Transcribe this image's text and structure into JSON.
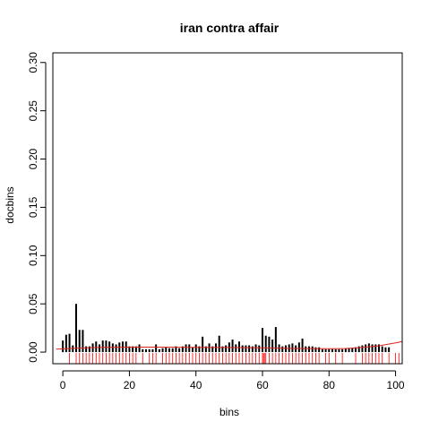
{
  "chart_data": {
    "type": "bar",
    "title": "iran contra affair",
    "xlabel": "bins",
    "ylabel": "docbins",
    "xlim": [
      -3,
      102
    ],
    "ylim": [
      -0.012,
      0.31
    ],
    "x_ticks": [
      0,
      20,
      40,
      60,
      80,
      100
    ],
    "y_ticks": [
      0.0,
      0.05,
      0.1,
      0.15,
      0.2,
      0.25,
      0.3
    ],
    "x_tick_labels": [
      "0",
      "20",
      "40",
      "60",
      "80",
      "100"
    ],
    "y_tick_labels": [
      "0.00",
      "0.05",
      "0.10",
      "0.15",
      "0.20",
      "0.25",
      "0.30"
    ],
    "bar_color": "#000000",
    "rug_color": "#ff0000",
    "trend_color": "#dd2222",
    "bins": [
      0,
      1,
      2,
      3,
      4,
      5,
      6,
      7,
      8,
      9,
      10,
      11,
      12,
      13,
      14,
      15,
      16,
      17,
      18,
      19,
      20,
      21,
      22,
      23,
      24,
      25,
      26,
      27,
      28,
      29,
      30,
      31,
      32,
      33,
      34,
      35,
      36,
      37,
      38,
      39,
      40,
      41,
      42,
      43,
      44,
      45,
      46,
      47,
      48,
      49,
      50,
      51,
      52,
      53,
      54,
      55,
      56,
      57,
      58,
      59,
      60,
      61,
      62,
      63,
      64,
      65,
      66,
      67,
      68,
      69,
      70,
      71,
      72,
      73,
      74,
      75,
      76,
      77,
      78,
      79,
      80,
      81,
      82,
      83,
      84,
      85,
      86,
      87,
      88,
      89,
      90,
      91,
      92,
      93,
      94,
      95,
      96,
      97,
      98,
      99,
      100
    ],
    "values": [
      0.012,
      0.018,
      0.019,
      0.007,
      0.05,
      0.023,
      0.023,
      0.006,
      0.006,
      0.009,
      0.011,
      0.008,
      0.012,
      0.012,
      0.011,
      0.009,
      0.008,
      0.01,
      0.011,
      0.011,
      0.006,
      0.006,
      0.006,
      0.008,
      0.003,
      0.003,
      0.003,
      0.003,
      0.008,
      0.003,
      0.004,
      0.005,
      0.004,
      0.004,
      0.006,
      0.004,
      0.006,
      0.008,
      0.008,
      0.005,
      0.008,
      0.006,
      0.016,
      0.006,
      0.009,
      0.006,
      0.009,
      0.017,
      0.006,
      0.007,
      0.01,
      0.013,
      0.008,
      0.011,
      0.007,
      0.007,
      0.007,
      0.006,
      0.008,
      0.007,
      0.025,
      0.017,
      0.016,
      0.013,
      0.026,
      0.008,
      0.006,
      0.007,
      0.008,
      0.009,
      0.007,
      0.01,
      0.014,
      0.006,
      0.006,
      0.006,
      0.005,
      0.005,
      0.003,
      0.003,
      0.003,
      0.003,
      0.003,
      0.003,
      0.003,
      0.004,
      0.004,
      0.004,
      0.005,
      0.006,
      0.007,
      0.008,
      0.009,
      0.008,
      0.008,
      0.008,
      0.006,
      0.005,
      0.005,
      0,
      0
    ],
    "rug_positions": [
      2,
      4,
      5,
      6,
      7,
      8,
      9,
      10,
      11,
      12,
      13,
      14,
      15,
      16,
      17,
      18,
      19,
      20,
      21,
      22,
      24,
      26,
      27,
      28,
      30,
      31,
      32,
      33,
      34,
      35,
      36,
      37,
      38,
      39,
      40,
      41,
      42,
      43,
      44,
      45,
      46,
      47,
      48,
      49,
      50,
      51,
      52,
      53,
      54,
      55,
      56,
      57,
      58,
      59,
      60,
      60.3,
      60.6,
      61,
      62,
      63,
      64,
      65,
      66,
      67,
      68,
      69,
      70,
      71,
      72,
      73,
      74,
      75,
      76,
      77,
      79,
      80,
      82,
      84,
      88,
      90,
      91,
      92,
      93,
      94,
      95,
      96,
      98,
      100,
      101
    ],
    "trend": {
      "x": [
        -2,
        5,
        10,
        20,
        30,
        40,
        50,
        60,
        70,
        80,
        85,
        90,
        95,
        100,
        102
      ],
      "y": [
        0.003,
        0.0042,
        0.0048,
        0.0052,
        0.0052,
        0.005,
        0.0048,
        0.0044,
        0.0038,
        0.0035,
        0.0038,
        0.0048,
        0.0066,
        0.0095,
        0.011
      ]
    }
  }
}
